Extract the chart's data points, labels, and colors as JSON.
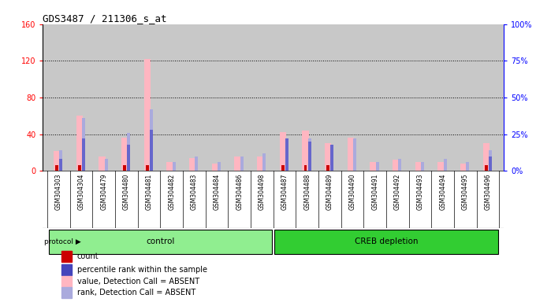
{
  "title": "GDS3487 / 211306_s_at",
  "samples": [
    "GSM304303",
    "GSM304304",
    "GSM304479",
    "GSM304480",
    "GSM304481",
    "GSM304482",
    "GSM304483",
    "GSM304484",
    "GSM304486",
    "GSM304498",
    "GSM304487",
    "GSM304488",
    "GSM304489",
    "GSM304490",
    "GSM304491",
    "GSM304492",
    "GSM304493",
    "GSM304494",
    "GSM304495",
    "GSM304496"
  ],
  "count_values": [
    6,
    6,
    0,
    6,
    6,
    0,
    0,
    0,
    0,
    0,
    6,
    6,
    6,
    0,
    0,
    0,
    0,
    0,
    0,
    6
  ],
  "rank_values": [
    8,
    22,
    0,
    18,
    28,
    0,
    0,
    0,
    0,
    0,
    22,
    20,
    18,
    0,
    0,
    0,
    0,
    0,
    0,
    10
  ],
  "absent_value": [
    22,
    60,
    16,
    36,
    122,
    10,
    14,
    8,
    16,
    16,
    42,
    44,
    30,
    36,
    10,
    12,
    10,
    10,
    8,
    30
  ],
  "absent_rank": [
    14,
    36,
    8,
    26,
    42,
    6,
    10,
    6,
    10,
    12,
    20,
    22,
    16,
    22,
    6,
    8,
    6,
    8,
    6,
    14
  ],
  "groups": [
    "control",
    "control",
    "control",
    "control",
    "control",
    "control",
    "control",
    "control",
    "control",
    "control",
    "CREB depletion",
    "CREB depletion",
    "CREB depletion",
    "CREB depletion",
    "CREB depletion",
    "CREB depletion",
    "CREB depletion",
    "CREB depletion",
    "CREB depletion",
    "CREB depletion"
  ],
  "ylim_left": [
    0,
    160
  ],
  "ylim_right": [
    0,
    100
  ],
  "yticks_left": [
    0,
    40,
    80,
    120,
    160
  ],
  "yticks_right": [
    0,
    25,
    50,
    75,
    100
  ],
  "ytick_labels_left": [
    "0",
    "40",
    "80",
    "120",
    "160"
  ],
  "ytick_labels_right": [
    "0%",
    "25%",
    "50%",
    "75%",
    "100%"
  ],
  "count_color": "#CC0000",
  "rank_color": "#6666CC",
  "absent_value_color": "#FFB6C1",
  "absent_rank_color": "#AAAADD",
  "bar_bg_color": "#C8C8C8",
  "plot_bg": "#FFFFFF",
  "grid_color": "#000000",
  "legend_items": [
    {
      "label": "count",
      "color": "#CC0000"
    },
    {
      "label": "percentile rank within the sample",
      "color": "#4444BB"
    },
    {
      "label": "value, Detection Call = ABSENT",
      "color": "#FFB6C1"
    },
    {
      "label": "rank, Detection Call = ABSENT",
      "color": "#AAAADD"
    }
  ]
}
